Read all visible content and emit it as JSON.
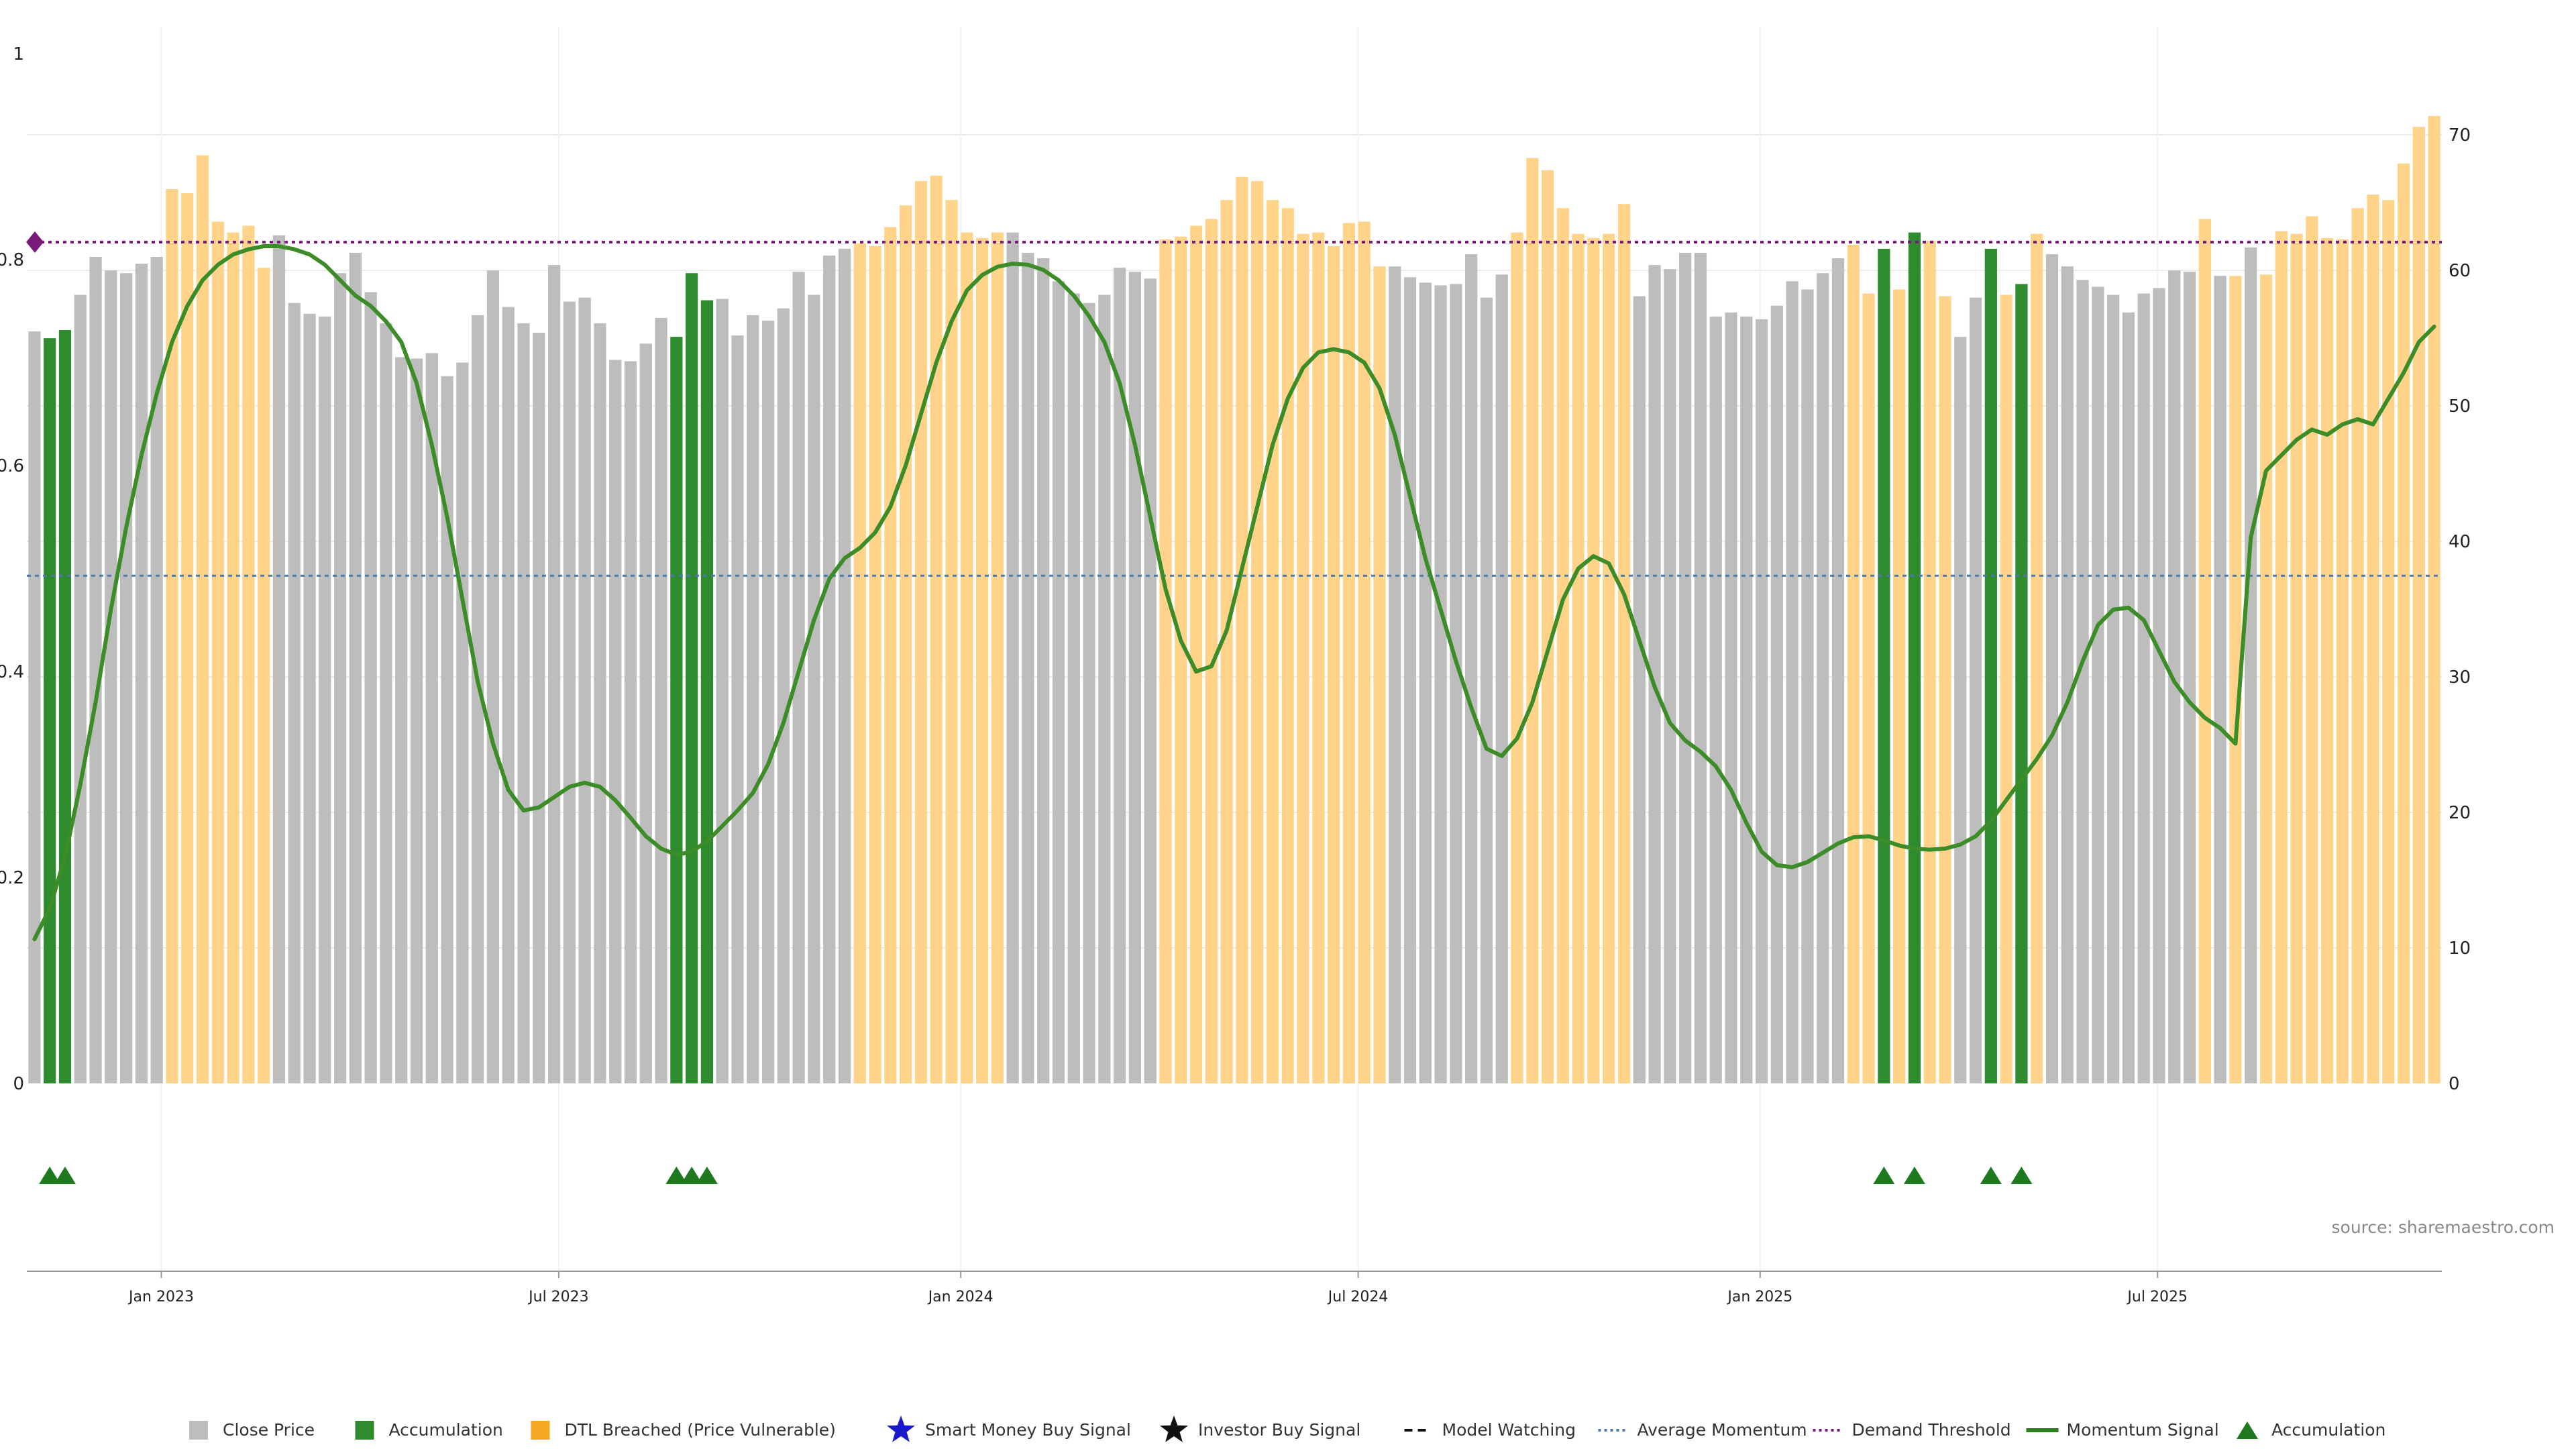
{
  "chart_data": {
    "type": "bar",
    "source_text": "source: sharemaestro.com",
    "x_tick_labels": [
      "Jan 2023",
      "Jul 2023",
      "Jan 2024",
      "Jul 2024",
      "Jan 2025",
      "Jul 2025"
    ],
    "x_tick_positions": [
      8.8,
      34.8,
      61.1,
      87.1,
      113.4,
      139.4
    ],
    "left_axis": {
      "ticks": [
        "0",
        "0.2",
        "0.4",
        "0.6",
        "0.8",
        "1"
      ],
      "ylim": [
        0,
        1
      ]
    },
    "right_axis": {
      "ticks": [
        "0",
        "10",
        "20",
        "30",
        "40",
        "50",
        "60",
        "70"
      ],
      "ylim": [
        0,
        76
      ]
    },
    "categories_count": 158,
    "close_price_right_axis": [
      55.5,
      55.0,
      55.6,
      58.2,
      61.0,
      60.0,
      59.8,
      60.5,
      61.0,
      66.0,
      65.7,
      68.5,
      63.6,
      62.8,
      63.3,
      60.2,
      62.6,
      57.6,
      56.8,
      56.6,
      59.8,
      61.3,
      58.4,
      56.1,
      53.6,
      53.5,
      53.9,
      52.2,
      53.2,
      56.7,
      60.0,
      57.3,
      56.1,
      55.4,
      60.4,
      57.7,
      58.0,
      56.1,
      53.4,
      53.3,
      54.6,
      56.5,
      55.1,
      59.8,
      57.8,
      57.9,
      55.2,
      56.7,
      56.3,
      57.2,
      59.9,
      58.2,
      61.1,
      61.6,
      62.0,
      61.8,
      63.2,
      64.8,
      66.6,
      67.0,
      65.2,
      62.8,
      62.4,
      62.8,
      62.8,
      61.3,
      60.9,
      59.2,
      58.3,
      57.6,
      58.2,
      60.2,
      59.9,
      59.4,
      62.3,
      62.5,
      63.3,
      63.8,
      65.2,
      66.9,
      66.6,
      65.2,
      64.6,
      62.7,
      62.8,
      61.8,
      63.5,
      63.6,
      60.3,
      60.3,
      59.5,
      59.1,
      58.9,
      59.0,
      61.2,
      58.0,
      59.7,
      62.8,
      68.3,
      67.4,
      64.6,
      62.7,
      62.4,
      62.7,
      64.9,
      58.1,
      60.4,
      60.1,
      61.3,
      61.3,
      56.6,
      56.9,
      56.6,
      56.4,
      57.4,
      59.2,
      58.6,
      59.8,
      60.9,
      61.9,
      58.3,
      61.6,
      58.6,
      62.8,
      62.2,
      58.1,
      55.1,
      58.0,
      61.6,
      58.2,
      59.0,
      62.7,
      61.2,
      60.3,
      59.3,
      58.8,
      58.2,
      56.9,
      58.3,
      58.7,
      60.0,
      59.9,
      63.8,
      59.6,
      59.6,
      61.7,
      59.7,
      62.9,
      62.7,
      64.0,
      62.4,
      62.3,
      64.6,
      65.6,
      65.2,
      67.9,
      70.6,
      71.4
    ],
    "accumulation_bar_indices": [
      1,
      2,
      42,
      43,
      44,
      121,
      123,
      128,
      130
    ],
    "dtl_breached_ranges": [
      [
        9,
        15
      ],
      [
        54,
        63
      ],
      [
        74,
        88
      ],
      [
        97,
        104
      ],
      [
        119,
        120
      ],
      [
        122,
        122
      ],
      [
        124,
        125
      ],
      [
        129,
        129
      ],
      [
        131,
        131
      ],
      [
        142,
        142
      ],
      [
        144,
        144
      ],
      [
        146,
        157
      ]
    ],
    "momentum_signal_left_axis": [
      [
        0,
        0.14
      ],
      [
        1,
        0.17
      ],
      [
        2,
        0.22
      ],
      [
        3,
        0.29
      ],
      [
        4,
        0.37
      ],
      [
        5,
        0.46
      ],
      [
        6,
        0.54
      ],
      [
        7,
        0.61
      ],
      [
        8,
        0.67
      ],
      [
        9,
        0.72
      ],
      [
        10,
        0.755
      ],
      [
        11,
        0.78
      ],
      [
        12,
        0.795
      ],
      [
        13,
        0.805
      ],
      [
        14,
        0.81
      ],
      [
        15,
        0.813
      ],
      [
        16,
        0.813
      ],
      [
        17,
        0.81
      ],
      [
        18,
        0.805
      ],
      [
        19,
        0.795
      ],
      [
        20,
        0.78
      ],
      [
        21,
        0.765
      ],
      [
        22,
        0.755
      ],
      [
        23,
        0.74
      ],
      [
        24,
        0.72
      ],
      [
        25,
        0.68
      ],
      [
        26,
        0.62
      ],
      [
        27,
        0.55
      ],
      [
        28,
        0.47
      ],
      [
        29,
        0.39
      ],
      [
        30,
        0.33
      ],
      [
        31,
        0.285
      ],
      [
        32,
        0.265
      ],
      [
        33,
        0.268
      ],
      [
        34,
        0.278
      ],
      [
        35,
        0.288
      ],
      [
        36,
        0.292
      ],
      [
        37,
        0.288
      ],
      [
        38,
        0.275
      ],
      [
        39,
        0.258
      ],
      [
        40,
        0.24
      ],
      [
        41,
        0.228
      ],
      [
        42,
        0.222
      ],
      [
        43,
        0.225
      ],
      [
        44,
        0.235
      ],
      [
        45,
        0.25
      ],
      [
        46,
        0.265
      ],
      [
        47,
        0.282
      ],
      [
        48,
        0.31
      ],
      [
        49,
        0.35
      ],
      [
        50,
        0.4
      ],
      [
        51,
        0.45
      ],
      [
        52,
        0.49
      ],
      [
        53,
        0.51
      ],
      [
        54,
        0.52
      ],
      [
        55,
        0.535
      ],
      [
        56,
        0.56
      ],
      [
        57,
        0.6
      ],
      [
        58,
        0.65
      ],
      [
        59,
        0.7
      ],
      [
        60,
        0.74
      ],
      [
        61,
        0.77
      ],
      [
        62,
        0.785
      ],
      [
        63,
        0.793
      ],
      [
        64,
        0.796
      ],
      [
        65,
        0.795
      ],
      [
        66,
        0.79
      ],
      [
        67,
        0.78
      ],
      [
        68,
        0.765
      ],
      [
        69,
        0.745
      ],
      [
        70,
        0.72
      ],
      [
        71,
        0.68
      ],
      [
        72,
        0.62
      ],
      [
        73,
        0.55
      ],
      [
        74,
        0.48
      ],
      [
        75,
        0.43
      ],
      [
        76,
        0.4
      ],
      [
        77,
        0.405
      ],
      [
        78,
        0.44
      ],
      [
        79,
        0.5
      ],
      [
        80,
        0.56
      ],
      [
        81,
        0.62
      ],
      [
        82,
        0.665
      ],
      [
        83,
        0.695
      ],
      [
        84,
        0.71
      ],
      [
        85,
        0.713
      ],
      [
        86,
        0.71
      ],
      [
        87,
        0.7
      ],
      [
        88,
        0.675
      ],
      [
        89,
        0.63
      ],
      [
        90,
        0.57
      ],
      [
        91,
        0.51
      ],
      [
        92,
        0.46
      ],
      [
        93,
        0.41
      ],
      [
        94,
        0.365
      ],
      [
        95,
        0.325
      ],
      [
        96,
        0.318
      ],
      [
        97,
        0.335
      ],
      [
        98,
        0.37
      ],
      [
        99,
        0.42
      ],
      [
        100,
        0.47
      ],
      [
        101,
        0.5
      ],
      [
        102,
        0.512
      ],
      [
        103,
        0.505
      ],
      [
        104,
        0.475
      ],
      [
        105,
        0.43
      ],
      [
        106,
        0.385
      ],
      [
        107,
        0.35
      ],
      [
        108,
        0.333
      ],
      [
        109,
        0.322
      ],
      [
        110,
        0.308
      ],
      [
        111,
        0.285
      ],
      [
        112,
        0.253
      ],
      [
        113,
        0.225
      ],
      [
        114,
        0.212
      ],
      [
        115,
        0.21
      ],
      [
        116,
        0.215
      ],
      [
        117,
        0.224
      ],
      [
        118,
        0.233
      ],
      [
        119,
        0.239
      ],
      [
        120,
        0.24
      ],
      [
        121,
        0.236
      ],
      [
        122,
        0.231
      ],
      [
        123,
        0.228
      ],
      [
        124,
        0.227
      ],
      [
        125,
        0.228
      ],
      [
        126,
        0.232
      ],
      [
        127,
        0.24
      ],
      [
        128,
        0.255
      ],
      [
        129,
        0.275
      ],
      [
        130,
        0.295
      ],
      [
        131,
        0.315
      ],
      [
        132,
        0.338
      ],
      [
        133,
        0.37
      ],
      [
        134,
        0.41
      ],
      [
        135,
        0.445
      ],
      [
        136,
        0.46
      ],
      [
        137,
        0.462
      ],
      [
        138,
        0.45
      ],
      [
        139,
        0.42
      ],
      [
        140,
        0.39
      ],
      [
        141,
        0.37
      ],
      [
        142,
        0.355
      ],
      [
        143,
        0.345
      ],
      [
        144,
        0.33
      ],
      [
        145,
        0.53
      ],
      [
        146,
        0.595
      ],
      [
        147,
        0.61
      ],
      [
        148,
        0.625
      ],
      [
        149,
        0.635
      ],
      [
        150,
        0.63
      ],
      [
        151,
        0.64
      ],
      [
        152,
        0.645
      ],
      [
        153,
        0.64
      ],
      [
        154,
        0.665
      ],
      [
        155,
        0.69
      ],
      [
        156,
        0.72
      ],
      [
        157,
        0.735
      ]
    ],
    "demand_threshold_left_axis": 0.817,
    "average_momentum_left_axis": 0.493,
    "accumulation_marker_indices": [
      1,
      2,
      42,
      43,
      44,
      121,
      123,
      128,
      130
    ],
    "colors": {
      "close_price": "#bdbdbd",
      "accumulation": "#2e8b2e",
      "dtl_breached": "#ffd48a",
      "momentum": "#3c8c28",
      "demand_threshold": "#7a1a7a",
      "average_momentum": "#4a78a8",
      "marker_green": "#1f7a1f",
      "threshold_diamond": "#7a1a7a"
    },
    "legend": [
      {
        "label": "Close Price",
        "symbol": "square",
        "color": "#bdbdbd"
      },
      {
        "label": "Accumulation",
        "symbol": "square",
        "color": "#2e8b2e"
      },
      {
        "label": "DTL Breached (Price Vulnerable)",
        "symbol": "square",
        "color": "#f5a623"
      },
      {
        "label": "Smart Money Buy Signal",
        "symbol": "star",
        "color": "#1a1acc"
      },
      {
        "label": "Investor Buy Signal",
        "symbol": "star",
        "color": "#111111"
      },
      {
        "label": "Model Watching",
        "symbol": "dash",
        "color": "#111111"
      },
      {
        "label": "Average Momentum",
        "symbol": "dot",
        "color": "#4a78a8"
      },
      {
        "label": "Demand Threshold",
        "symbol": "dot",
        "color": "#7a1a7a"
      },
      {
        "label": "Momentum Signal",
        "symbol": "line",
        "color": "#2e7d1f"
      },
      {
        "label": "Accumulation",
        "symbol": "triangle",
        "color": "#1f7a1f"
      }
    ]
  }
}
